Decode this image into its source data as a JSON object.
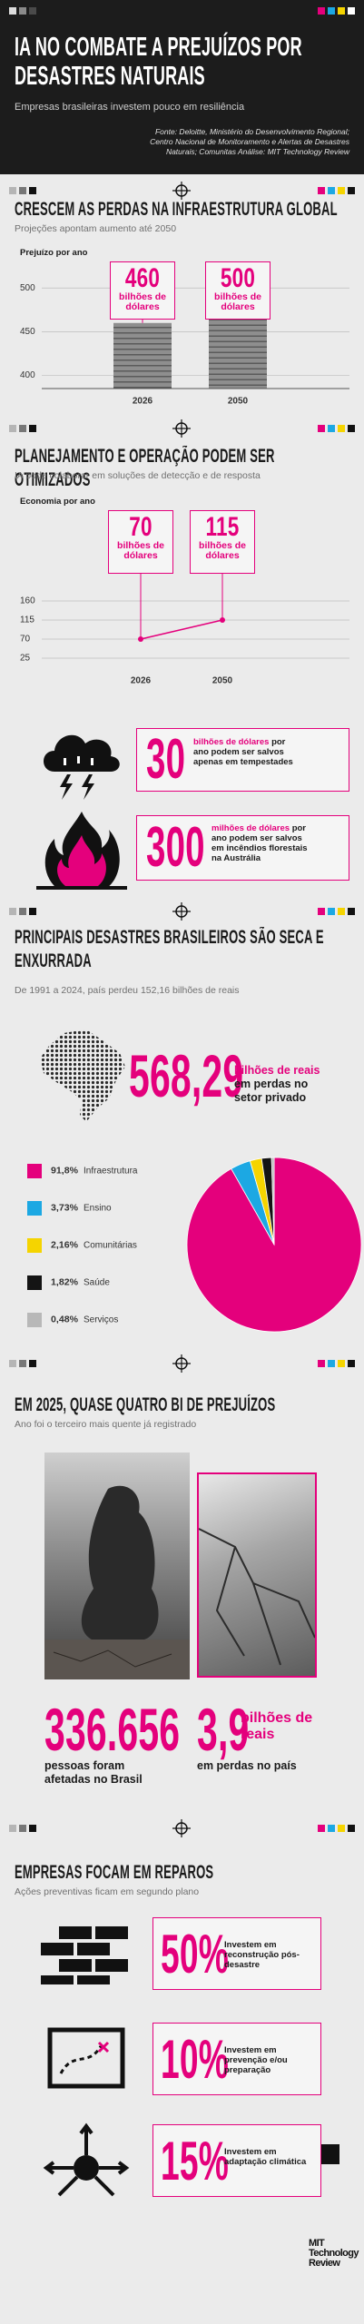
{
  "header": {
    "title": "IA NO COMBATE A PREJUÍZOS POR DESASTRES NATURAIS",
    "subtitle": "Empresas brasileiras investem pouco em resiliência",
    "source": "Fonte: Deloitte, Ministério do Desenvolvimento Regional; Centro Nacional de Monitoramento e Alertas de Desastres Naturais; Comunitas",
    "analysis": "Análise: MIT Technology Review"
  },
  "chart_data": [
    {
      "type": "bar",
      "title": "CRESCEM AS PERDAS NA INFRAESTRUTURA GLOBAL",
      "subtitle": "Projeções apontam aumento até 2050",
      "y_label": "Prejuízo por ano",
      "categories": [
        "2026",
        "2050"
      ],
      "values": [
        460,
        500
      ],
      "unit": "bilhões de dólares",
      "ylim": [
        385,
        520
      ],
      "yticks": [
        400,
        450,
        500
      ],
      "grid": true,
      "color": "#8e8e8e",
      "annotation_color": "#e4007c"
    },
    {
      "type": "line",
      "title": "PLANEJAMENTO E OPERAÇÃO PODEM SER OTIMIZADOS",
      "subtitle": "IA pode colaborar em soluções de detecção e de resposta",
      "y_label": "Economia por ano",
      "categories": [
        "2026",
        "2050"
      ],
      "values": [
        70,
        115
      ],
      "unit": "bilhões de dólares",
      "ylim": [
        25,
        160
      ],
      "yticks": [
        25,
        70,
        115,
        160
      ],
      "grid": true,
      "color": "#e4007c"
    },
    {
      "type": "pie",
      "title": "PRINCIPAIS DESASTRES BRASILEIROS SÃO SECA E ENXURRADA",
      "subtitle": "De 1991 a 2024, país perdeu 152,16 bilhões de reais",
      "categories": [
        "Infraestrutura",
        "Ensino",
        "Comunitárias",
        "Saúde",
        "Serviços"
      ],
      "values": [
        91.8,
        3.73,
        2.16,
        1.82,
        0.48
      ],
      "value_labels": [
        "91,8%",
        "3,73%",
        "2,16%",
        "1,82%",
        "0,48%"
      ],
      "colors": [
        "#e4007c",
        "#1ca8e3",
        "#f5d400",
        "#141414",
        "#b8b8b8"
      ]
    }
  ],
  "savings": [
    {
      "value": "30",
      "unit": "bilhões de dólares",
      "text": "por ano podem ser salvos apenas em tempestades"
    },
    {
      "value": "300",
      "unit": "milhões de dólares",
      "text": "por ano podem ser salvos em incêndios florestais na Austrália"
    }
  ],
  "brazil_losses": {
    "value": "568,29",
    "unit": "bilhões de reais",
    "text": "em perdas no setor privado"
  },
  "year_2025": {
    "title": "EM 2025, QUASE QUATRO BI DE PREJUÍZOS",
    "subtitle": "Ano foi o terceiro mais quente já registrado",
    "stats": [
      {
        "value": "336.656",
        "text": "pessoas foram afetadas no Brasil"
      },
      {
        "value": "3,9",
        "unit": "bilhões de reais",
        "text": "em perdas no país"
      }
    ]
  },
  "repairs": {
    "title": "EMPRESAS FOCAM EM REPAROS",
    "subtitle": "Ações preventivas ficam em segundo plano",
    "items": [
      {
        "value": "50%",
        "text": "Investem em reconstrução pós-desastre"
      },
      {
        "value": "10%",
        "text": "Investem em prevenção e/ou preparação"
      },
      {
        "value": "15%",
        "text": "Investem em adaptação climática"
      }
    ]
  },
  "footer": {
    "logo": "MIT Technology Review"
  }
}
